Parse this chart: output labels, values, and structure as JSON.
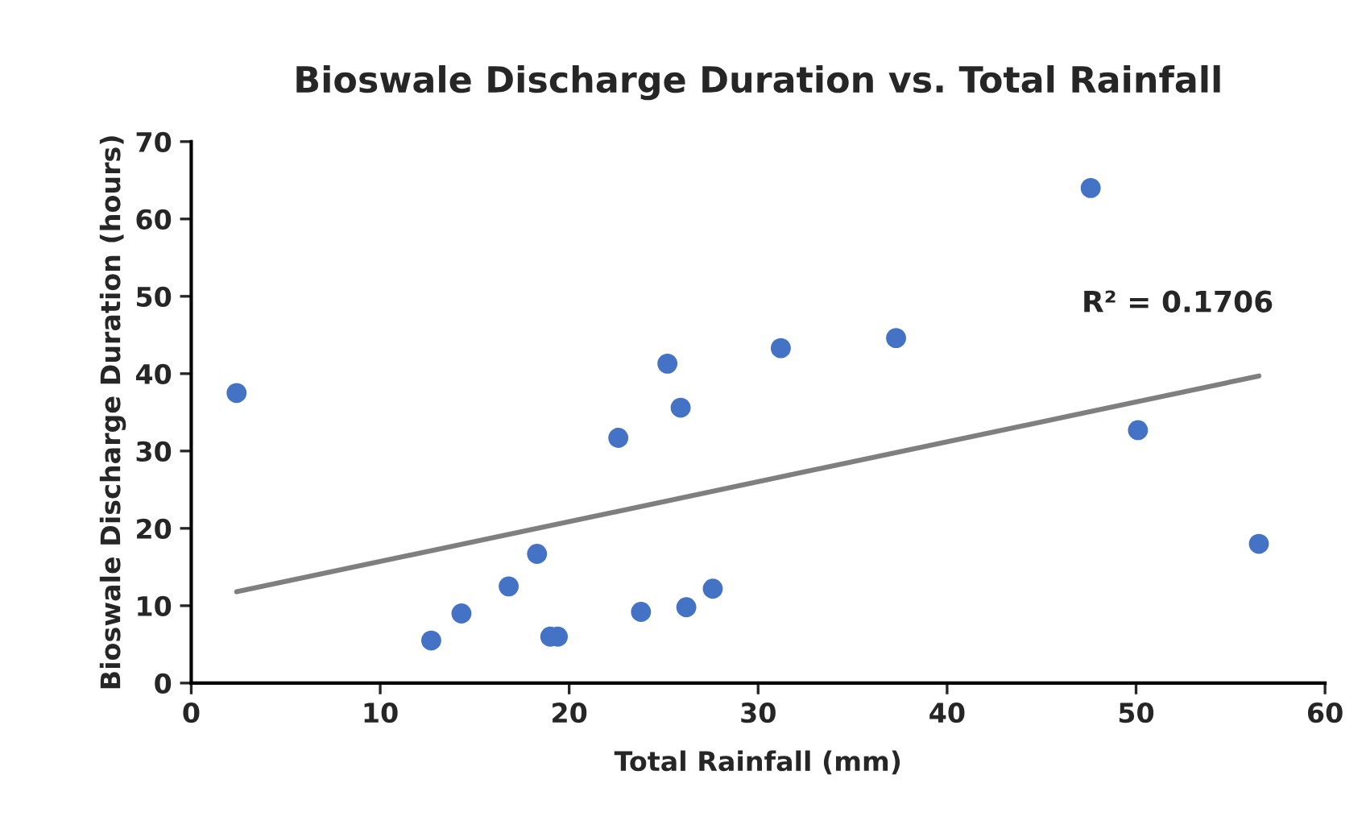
{
  "chart_data": {
    "type": "scatter",
    "title": "Bioswale Discharge Duration vs. Total Rainfall",
    "xlabel": "Total Rainfall (mm)",
    "ylabel": "Bioswale Discharge Duration (hours)",
    "series": [
      {
        "color": "#4472c4",
        "marker": "circle",
        "x": [
          2.4,
          12.7,
          14.3,
          16.8,
          18.3,
          19.0,
          19.4,
          22.6,
          23.8,
          25.2,
          25.9,
          26.2,
          27.6,
          31.2,
          37.3,
          47.6,
          50.1,
          56.5
        ],
        "values": [
          37.5,
          5.5,
          9,
          12.5,
          16.7,
          6,
          6,
          31.7,
          9.2,
          41.3,
          35.6,
          9.8,
          12.2,
          43.3,
          44.6,
          64,
          32.7,
          18
        ]
      },
      {
        "type": "line",
        "color": "#7f7f7f",
        "x": [
          2.4,
          56.5
        ],
        "values": [
          11.8,
          39.7
        ]
      }
    ],
    "annotations": [
      "R² = 0.1706"
    ],
    "xlim": [
      0,
      60
    ],
    "xticks": [
      0,
      10,
      20,
      30,
      40,
      50,
      60
    ],
    "ylim": [
      0,
      70
    ],
    "yticks": [
      0,
      10,
      20,
      30,
      40,
      50,
      60,
      70
    ],
    "grid": false,
    "legend": false
  }
}
